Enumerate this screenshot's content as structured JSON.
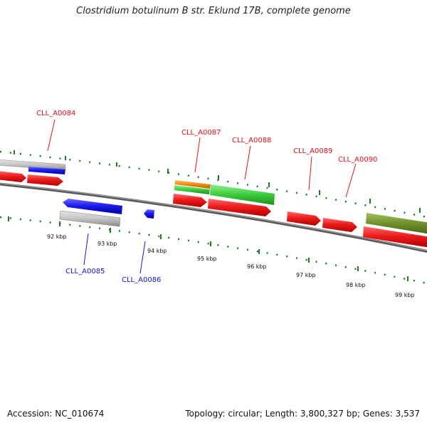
{
  "header": {
    "title": "Clostridium botulinum B str. Eklund 17B, complete genome"
  },
  "footer": {
    "accession": "Accession: NC_010674",
    "summary": "Topology: circular; Length: 3,800,327 bp; Genes: 3,537"
  },
  "map": {
    "ticks": [
      "92 kbp",
      "93 kbp",
      "94 kbp",
      "95 kbp",
      "96 kbp",
      "97 kbp",
      "98 kbp",
      "99 kbp"
    ],
    "gene_labels": [
      {
        "id": "CLL_A0084",
        "strand": "forward"
      },
      {
        "id": "CLL_A0087",
        "strand": "forward"
      },
      {
        "id": "CLL_A0088",
        "strand": "forward"
      },
      {
        "id": "CLL_A0089",
        "strand": "forward"
      },
      {
        "id": "CLL_A0090",
        "strand": "forward"
      },
      {
        "id": "CLL_A0085",
        "strand": "reverse"
      },
      {
        "id": "CLL_A0086",
        "strand": "reverse"
      }
    ],
    "colors": {
      "forward_label": "#e0101a",
      "reverse_label": "#1515d0",
      "cds_forward": "#e8101a",
      "cds_reverse": "#1818e0",
      "feature_grey": "#b8b8b8",
      "feature_green": "#30c030",
      "feature_orange": "#f08000",
      "feature_olive": "#6b8e23",
      "tick_green": "#207a20",
      "backbone": "#808080"
    }
  }
}
